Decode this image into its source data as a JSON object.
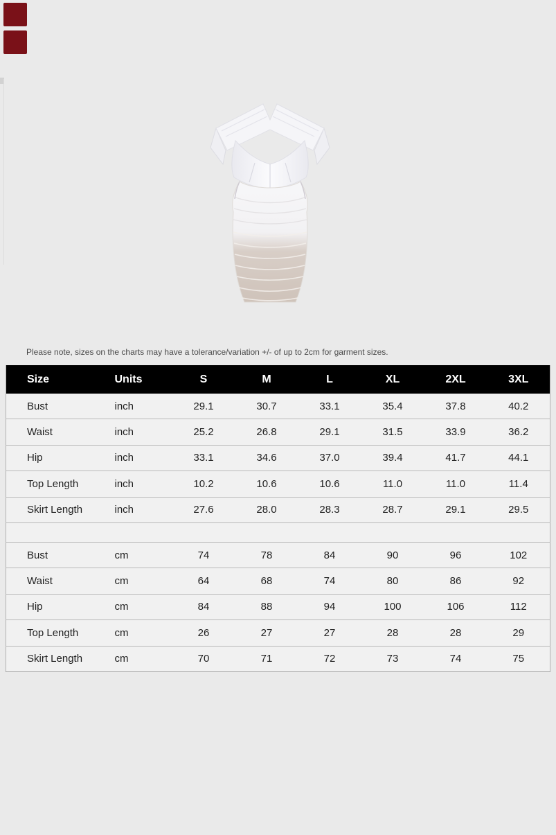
{
  "page": {
    "background_color": "#eaeaea"
  },
  "decorations": {
    "corner_swatches": [
      {
        "name": "swatch-dark-red-1",
        "color": "#7a1118"
      },
      {
        "name": "swatch-dark-red-2",
        "color": "#7a1118"
      }
    ]
  },
  "product_image": {
    "description": "white off-shoulder ruched mesh bodycon dress with sheer skirt hem",
    "dress_color": "#f6f6f8",
    "sheer_tint": "#cdc1b7"
  },
  "note": "Please note, sizes on the charts may have a tolerance/variation +/- of up to 2cm for garment sizes.",
  "size_chart": {
    "header_bg": "#000000",
    "header_text_color": "#ffffff",
    "columns": [
      "Size",
      "Units",
      "S",
      "M",
      "L",
      "XL",
      "2XL",
      "3XL"
    ],
    "inch_rows": [
      {
        "label": "Bust",
        "unit": "inch",
        "values": [
          "29.1",
          "30.7",
          "33.1",
          "35.4",
          "37.8",
          "40.2"
        ]
      },
      {
        "label": "Waist",
        "unit": "inch",
        "values": [
          "25.2",
          "26.8",
          "29.1",
          "31.5",
          "33.9",
          "36.2"
        ]
      },
      {
        "label": "Hip",
        "unit": "inch",
        "values": [
          "33.1",
          "34.6",
          "37.0",
          "39.4",
          "41.7",
          "44.1"
        ]
      },
      {
        "label": "Top Length",
        "unit": "inch",
        "values": [
          "10.2",
          "10.6",
          "10.6",
          "11.0",
          "11.0",
          "11.4"
        ]
      },
      {
        "label": "Skirt Length",
        "unit": "inch",
        "values": [
          "27.6",
          "28.0",
          "28.3",
          "28.7",
          "29.1",
          "29.5"
        ]
      }
    ],
    "cm_rows": [
      {
        "label": "Bust",
        "unit": "cm",
        "values": [
          "74",
          "78",
          "84",
          "90",
          "96",
          "102"
        ]
      },
      {
        "label": "Waist",
        "unit": "cm",
        "values": [
          "64",
          "68",
          "74",
          "80",
          "86",
          "92"
        ]
      },
      {
        "label": "Hip",
        "unit": "cm",
        "values": [
          "84",
          "88",
          "94",
          "100",
          "106",
          "112"
        ]
      },
      {
        "label": "Top Length",
        "unit": "cm",
        "values": [
          "26",
          "27",
          "27",
          "28",
          "28",
          "29"
        ]
      },
      {
        "label": "Skirt Length",
        "unit": "cm",
        "values": [
          "70",
          "71",
          "72",
          "73",
          "74",
          "75"
        ]
      }
    ]
  }
}
